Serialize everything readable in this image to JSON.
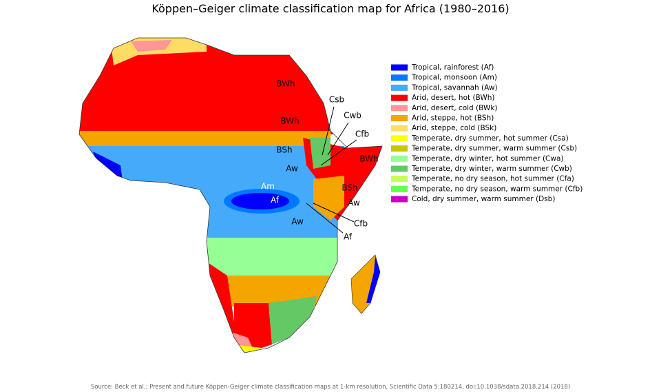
{
  "title": "Köppen–Geiger climate classification map for Africa (1980–2016)",
  "legend": [
    {
      "label": "Tropical, rainforest (Af)",
      "color": "#0000fe"
    },
    {
      "label": "Tropical, monsoon (Am)",
      "color": "#0078ff"
    },
    {
      "label": "Tropical, savannah (Aw)",
      "color": "#46aafa"
    },
    {
      "label": "Arid, desert, hot (BWh)",
      "color": "#ff0000"
    },
    {
      "label": "Arid, desert, cold (BWk)",
      "color": "#ff9696"
    },
    {
      "label": "Arid, steppe, hot (BSh)",
      "color": "#f5a500"
    },
    {
      "label": "Arid, steppe, cold (BSk)",
      "color": "#ffdc64"
    },
    {
      "label": "Temperate, dry summer, hot summer (Csa)",
      "color": "#ffff00"
    },
    {
      "label": "Temperate, dry summer, warm summer (Csb)",
      "color": "#c8c800"
    },
    {
      "label": "Temperate, dry winter, hot summer (Cwa)",
      "color": "#96ff96"
    },
    {
      "label": "Temperate, dry winter, warm summer (Cwb)",
      "color": "#64c864"
    },
    {
      "label": "Temperate, no dry season, hot summer (Cfa)",
      "color": "#c8ff50"
    },
    {
      "label": "Temperate, no dry season, warm summer (Cfb)",
      "color": "#64ff50"
    },
    {
      "label": "Cold, dry summer, warm summer (Dsb)",
      "color": "#c800c8"
    }
  ],
  "map_labels": [
    "BWh",
    "BWh",
    "BSh",
    "Aw",
    "Am",
    "Af",
    "Aw",
    "Csb",
    "Cwb",
    "Cfb",
    "BWh",
    "BSh",
    "Aw",
    "Cfb",
    "Af"
  ],
  "source": "Source: Beck et al.: Present and future Köppen-Geiger climate classification maps at 1-km resolution, Scientific Data 5:180214, doi:10.1038/sdata.2018.214 (2018)"
}
